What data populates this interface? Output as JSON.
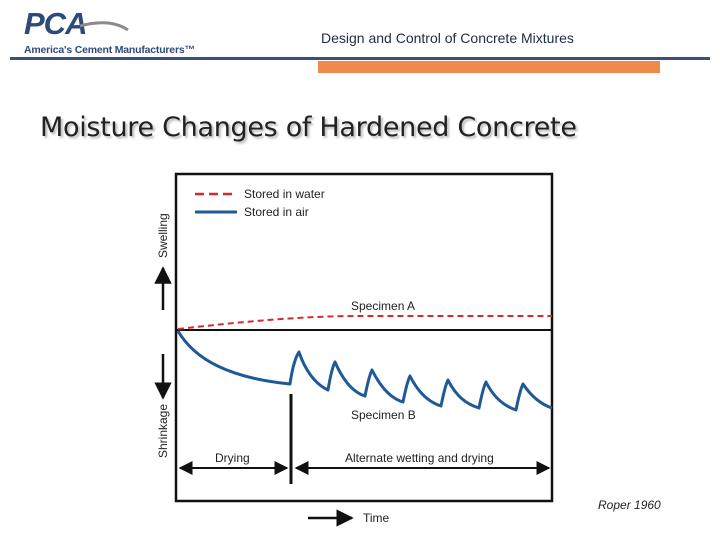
{
  "logo": {
    "wordmark": "PCA",
    "tagline": "America's Cement Manufacturers™"
  },
  "header": {
    "title": "Design and Control of Concrete Mixtures"
  },
  "slide": {
    "title": "Moisture Changes of Hardened Concrete"
  },
  "diagram": {
    "legend": [
      {
        "label": "Stored in water",
        "color": "#d62b2b",
        "style": "dashed"
      },
      {
        "label": "Stored in air",
        "color": "#1f5a96",
        "style": "solid"
      }
    ],
    "y_upper_label": "Swelling",
    "y_lower_label": "Shrinkage",
    "x_label": "Time",
    "specimen_a": "Specimen A",
    "specimen_b": "Specimen B",
    "phase_drying": "Drying",
    "phase_alternate": "Alternate wetting and drying"
  },
  "citation": "Roper 1960",
  "colors": {
    "brand_blue": "#2e4a7a",
    "accent_orange": "#f08a4b"
  }
}
